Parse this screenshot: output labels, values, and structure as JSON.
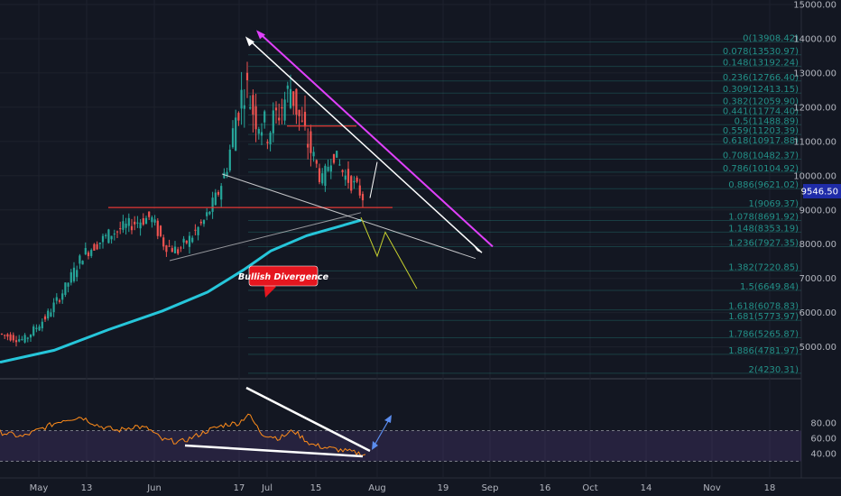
{
  "chart_data": [
    {
      "type": "candlestick",
      "x_ticks": [
        "May",
        "13",
        "Jun",
        "17",
        "Jul",
        "15",
        "Aug",
        "19",
        "Sep",
        "16",
        "Oct",
        "14",
        "Nov",
        "18"
      ],
      "y_ticks": [
        "15000.00",
        "14000.00",
        "13000.00",
        "12000.00",
        "11000.00",
        "10000.00",
        "9000.00",
        "8000.00",
        "7000.00",
        "6000.00",
        "5000.00"
      ],
      "ylim": [
        4200,
        15000
      ],
      "last_price": "9546.50",
      "fib_levels": [
        {
          "label": "0(13908.42)",
          "value": 13908.42
        },
        {
          "label": "0.078(13530.97)",
          "value": 13530.97
        },
        {
          "label": "0.148(13192.24)",
          "value": 13192.24
        },
        {
          "label": "0.236(12766.40)",
          "value": 12766.4
        },
        {
          "label": "0.309(12413.15)",
          "value": 12413.15
        },
        {
          "label": "0.382(12059.90)",
          "value": 12059.9
        },
        {
          "label": "0.441(11774.40)",
          "value": 11774.4
        },
        {
          "label": "0.5(11488.89)",
          "value": 11488.89
        },
        {
          "label": "0.559(11203.39)",
          "value": 11203.39
        },
        {
          "label": "0.618(10917.88)",
          "value": 10917.88
        },
        {
          "label": "0.708(10482.37)",
          "value": 10482.37
        },
        {
          "label": "0.786(10104.92)",
          "value": 10104.92
        },
        {
          "label": "0.886(9621.02)",
          "value": 9621.02
        },
        {
          "label": "1(9069.37)",
          "value": 9069.37
        },
        {
          "label": "1.078(8691.92)",
          "value": 8691.92
        },
        {
          "label": "1.148(8353.19)",
          "value": 8353.19
        },
        {
          "label": "1.236(7927.35)",
          "value": 7927.35
        },
        {
          "label": "1.382(7220.85)",
          "value": 7220.85
        },
        {
          "label": "1.5(6649.84)",
          "value": 6649.84
        },
        {
          "label": "1.618(6078.83)",
          "value": 6078.83
        },
        {
          "label": "1.681(5773.97)",
          "value": 5773.97
        },
        {
          "label": "1.786(5265.87)",
          "value": 5265.87
        },
        {
          "label": "1.886(4781.97)",
          "value": 4781.97
        },
        {
          "label": "2(4230.31)",
          "value": 4230.31
        }
      ],
      "annotation": "Bullish Divergence",
      "colors": {
        "up": "#26a69a",
        "down": "#ef5350",
        "ma": "#26c6da",
        "fib": "#26a69a",
        "wedge": "#ffffff",
        "channel": "#e040fb",
        "projection": "#c6d02e",
        "support": "#e53935"
      }
    },
    {
      "type": "line",
      "y_ticks": [
        "80.00",
        "60.00",
        "40.00"
      ],
      "ylim": [
        25,
        95
      ],
      "band": [
        70,
        30
      ],
      "colors": {
        "line": "#ff8c1a",
        "band": "#7e57c2",
        "arrow": "#5b8def"
      }
    }
  ]
}
